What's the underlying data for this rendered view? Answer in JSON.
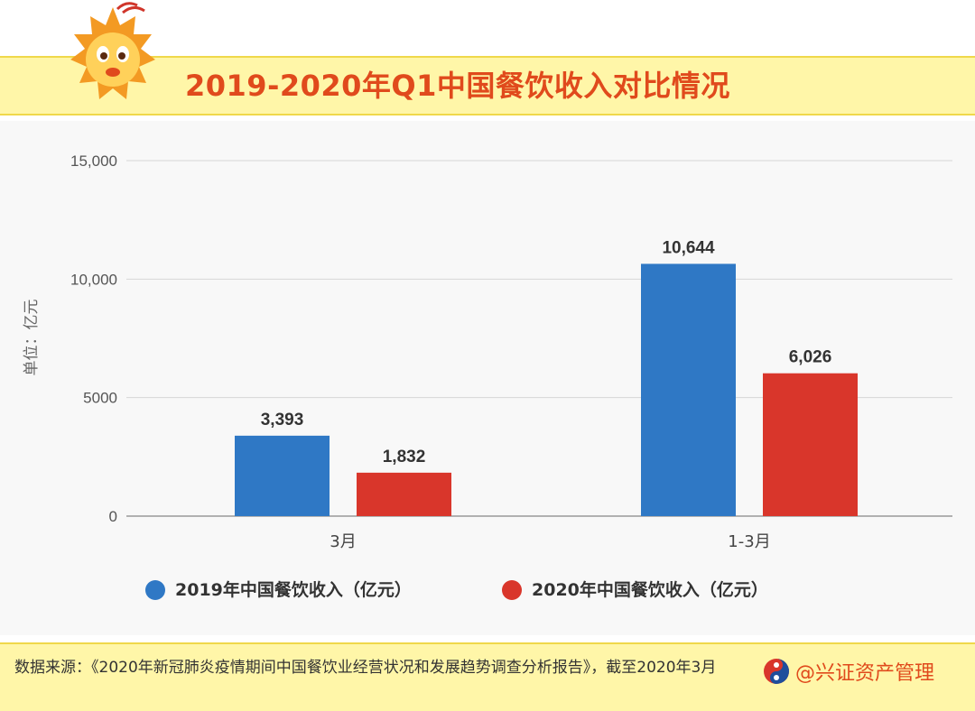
{
  "header": {
    "title": "2019-2020年Q1中国餐饮收入对比情况"
  },
  "chart_data": {
    "type": "bar",
    "categories": [
      "3月",
      "1-3月"
    ],
    "series": [
      {
        "name": "2019年中国餐饮收入（亿元）",
        "values": [
          3393,
          10644
        ],
        "labels": [
          "3,393",
          "10,644"
        ],
        "color": "#2f78c5"
      },
      {
        "name": "2020年中国餐饮收入（亿元）",
        "values": [
          1832,
          6026
        ],
        "labels": [
          "1,832",
          "6,026"
        ],
        "color": "#d9362b"
      }
    ],
    "ylabel": "单位：亿元",
    "ylim": [
      0,
      15000
    ],
    "yticks": [
      0,
      5000,
      10000,
      15000
    ],
    "ytick_labels": [
      "0",
      "5000",
      "10,000",
      "15,000"
    ],
    "grid": true,
    "legend_position": "bottom"
  },
  "footer": {
    "source": "数据来源：《2020年新冠肺炎疫情期间中国餐饮业经营状况和发展趋势调查分析报告》，截至2020年3月",
    "credit": "@兴证资产管理"
  }
}
